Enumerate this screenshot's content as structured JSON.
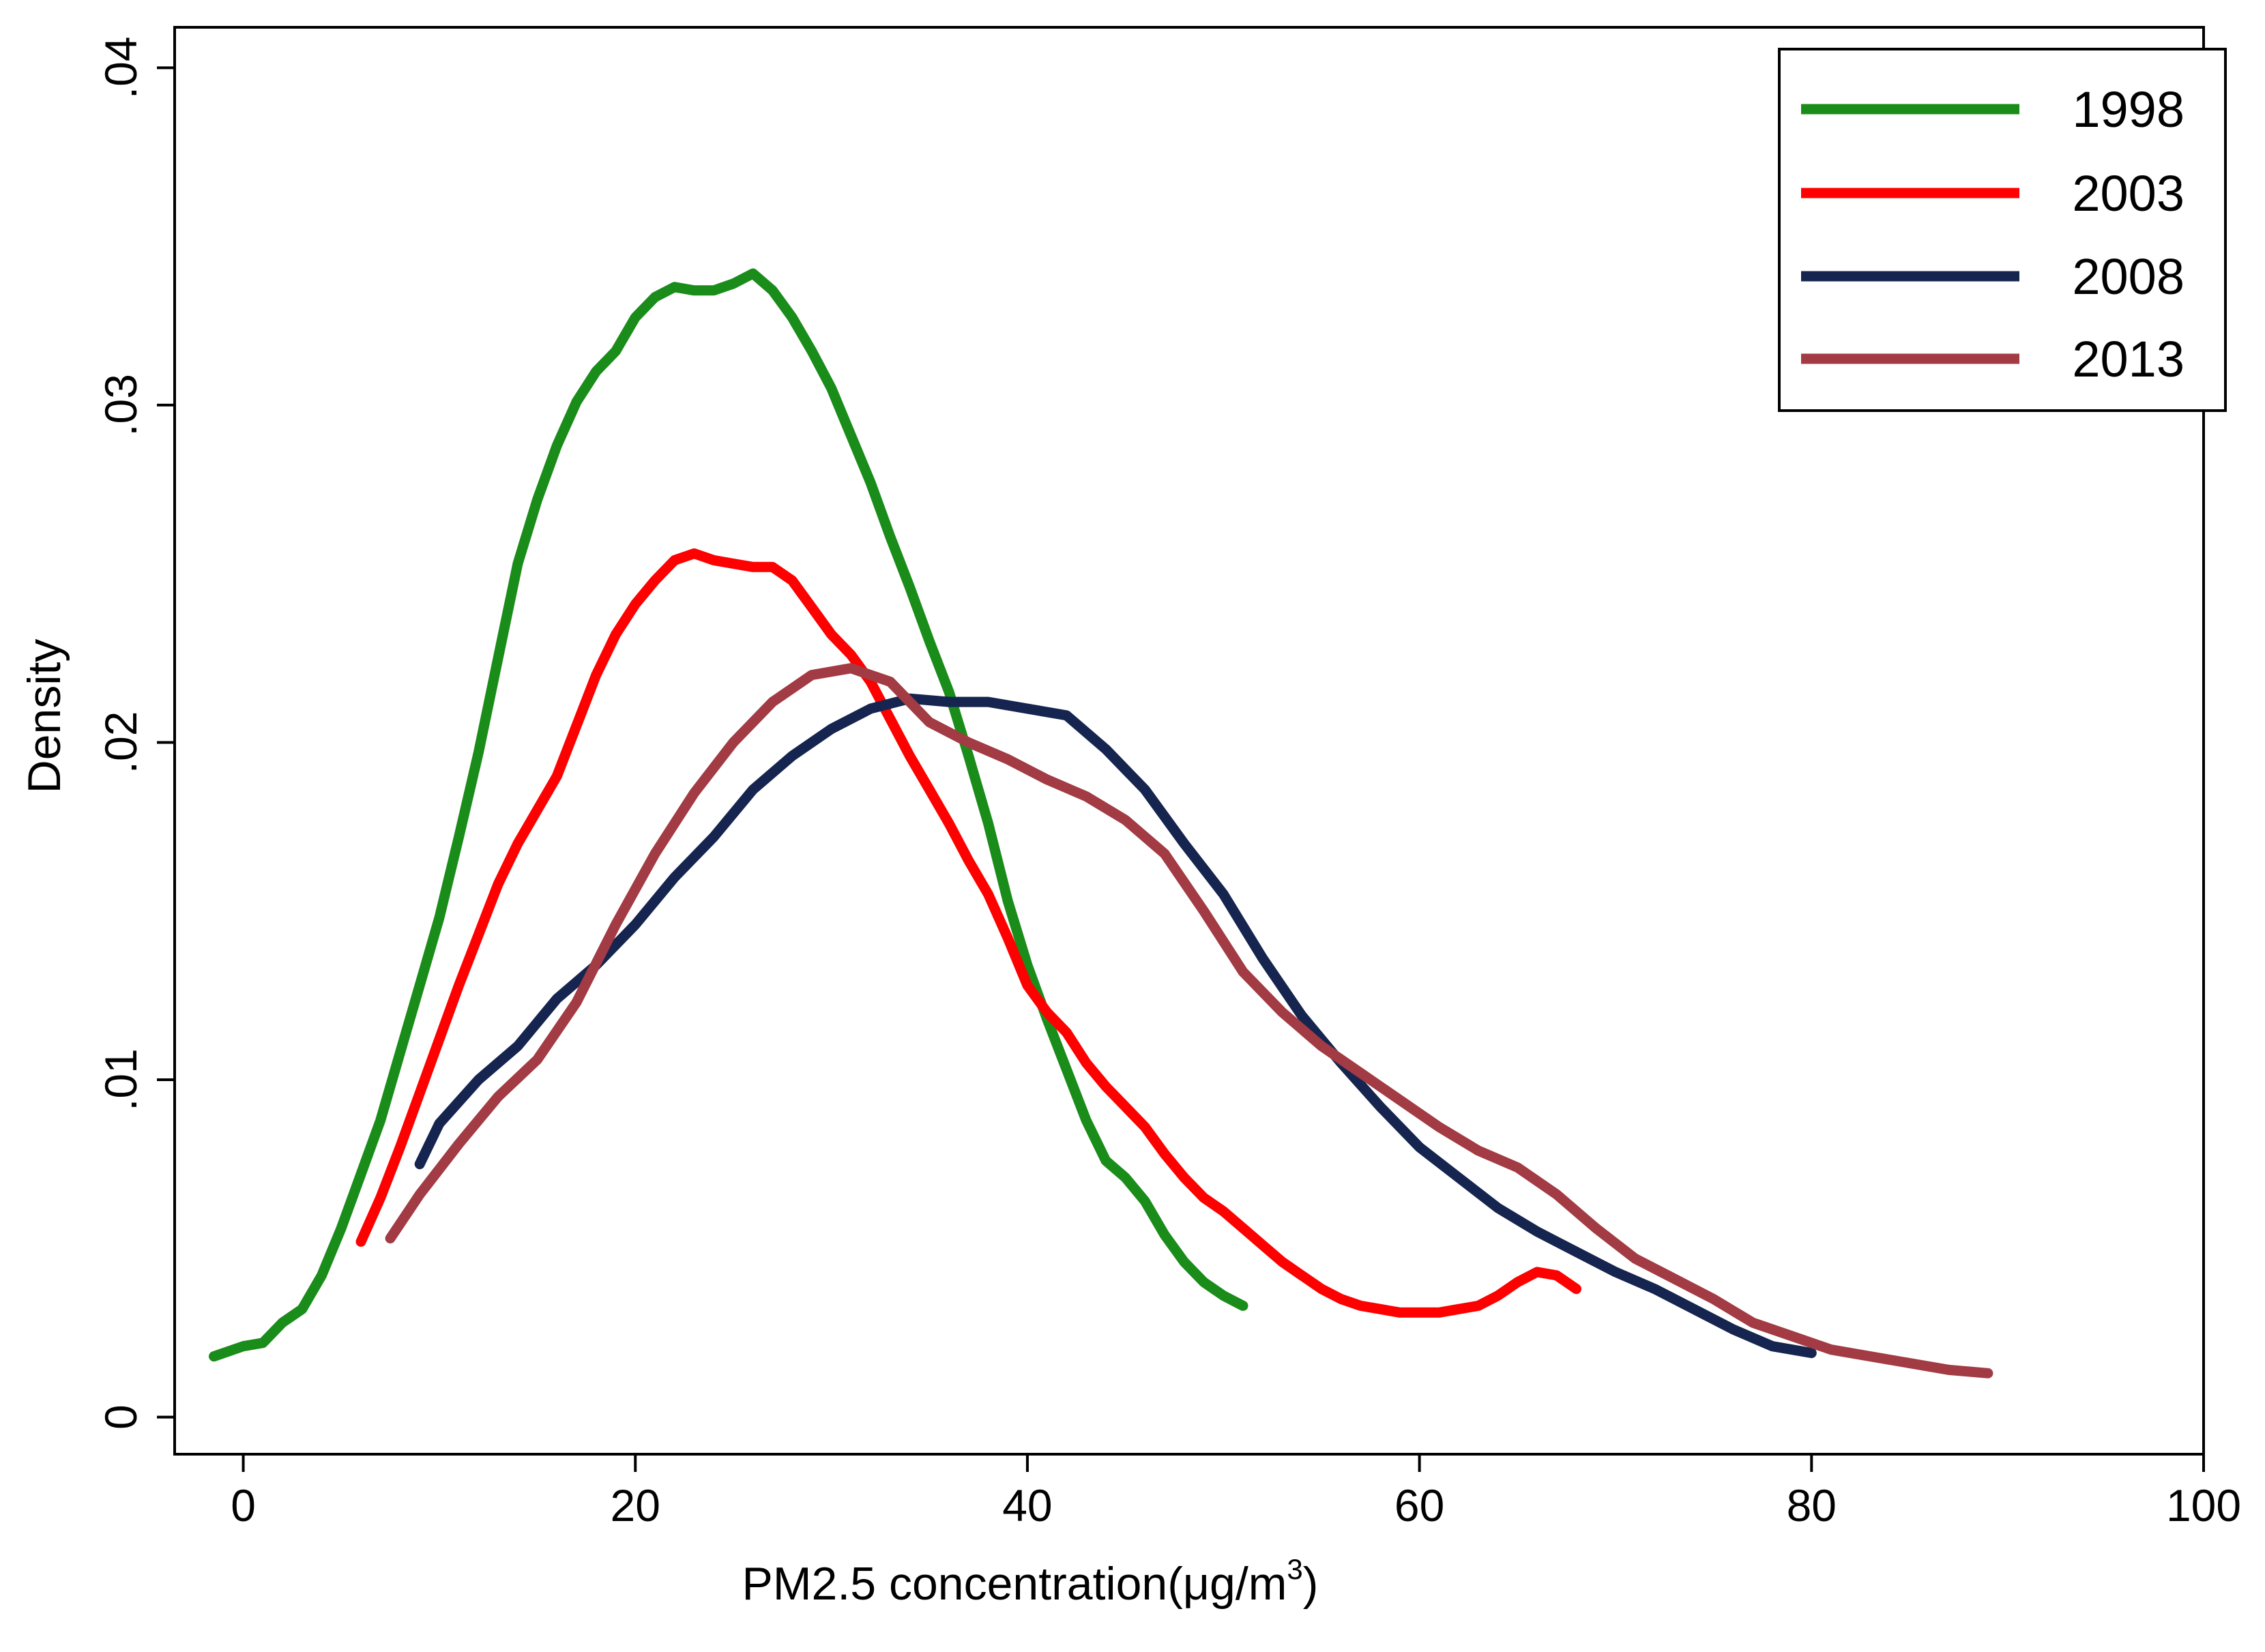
{
  "chart_data": {
    "type": "line",
    "title": "",
    "xlabel": "PM2.5 concentration(μg/m",
    "xlabel_superscript": "3",
    "xlabel_suffix": ")",
    "ylabel": "Density",
    "xlim": [
      -3.5,
      100
    ],
    "ylim": [
      -0.0011,
      0.0412
    ],
    "xticks": [
      0,
      20,
      40,
      60,
      80,
      100
    ],
    "xtick_labels": [
      "0",
      "20",
      "40",
      "60",
      "80",
      "100"
    ],
    "yticks": [
      0,
      0.01,
      0.02,
      0.03,
      0.04
    ],
    "ytick_labels": [
      "0",
      ".01",
      ".02",
      ".03",
      ".04"
    ],
    "grid": false,
    "legend_position": "top-right",
    "series": [
      {
        "name": "1998",
        "color": "#1a8c1a",
        "points": [
          [
            -1.5,
            0.0018
          ],
          [
            0,
            0.0021
          ],
          [
            1,
            0.0022
          ],
          [
            2,
            0.0028
          ],
          [
            3,
            0.0032
          ],
          [
            4,
            0.0042
          ],
          [
            5,
            0.0056
          ],
          [
            6,
            0.0072
          ],
          [
            7,
            0.0088
          ],
          [
            8,
            0.0108
          ],
          [
            9,
            0.0128
          ],
          [
            10,
            0.0148
          ],
          [
            11,
            0.0172
          ],
          [
            12,
            0.0197
          ],
          [
            13,
            0.0225
          ],
          [
            14,
            0.0253
          ],
          [
            15,
            0.0272
          ],
          [
            16,
            0.0288
          ],
          [
            17,
            0.0301
          ],
          [
            18,
            0.031
          ],
          [
            19,
            0.0316
          ],
          [
            20,
            0.0326
          ],
          [
            21,
            0.0332
          ],
          [
            22,
            0.0335
          ],
          [
            23,
            0.0334
          ],
          [
            24,
            0.0334
          ],
          [
            25,
            0.0336
          ],
          [
            26,
            0.0339
          ],
          [
            27,
            0.0334
          ],
          [
            28,
            0.0326
          ],
          [
            29,
            0.0316
          ],
          [
            30,
            0.0305
          ],
          [
            31,
            0.0291
          ],
          [
            32,
            0.0277
          ],
          [
            33,
            0.0261
          ],
          [
            34,
            0.0246
          ],
          [
            35,
            0.023
          ],
          [
            36,
            0.0215
          ],
          [
            37,
            0.0196
          ],
          [
            38,
            0.0176
          ],
          [
            39,
            0.0153
          ],
          [
            40,
            0.0134
          ],
          [
            41,
            0.0118
          ],
          [
            42,
            0.0103
          ],
          [
            43,
            0.0088
          ],
          [
            44,
            0.0076
          ],
          [
            45,
            0.0071
          ],
          [
            46,
            0.0064
          ],
          [
            47,
            0.0054
          ],
          [
            48,
            0.0046
          ],
          [
            49,
            0.004
          ],
          [
            50,
            0.0036
          ],
          [
            51,
            0.0033
          ]
        ]
      },
      {
        "name": "2003",
        "color": "#ff0000",
        "points": [
          [
            6,
            0.0052
          ],
          [
            7,
            0.0065
          ],
          [
            8,
            0.008
          ],
          [
            9,
            0.0096
          ],
          [
            10,
            0.0112
          ],
          [
            11,
            0.0128
          ],
          [
            12,
            0.0143
          ],
          [
            13,
            0.0158
          ],
          [
            14,
            0.017
          ],
          [
            15,
            0.018
          ],
          [
            16,
            0.019
          ],
          [
            17,
            0.0205
          ],
          [
            18,
            0.022
          ],
          [
            19,
            0.0232
          ],
          [
            20,
            0.0241
          ],
          [
            21,
            0.0248
          ],
          [
            22,
            0.0254
          ],
          [
            23,
            0.0256
          ],
          [
            24,
            0.0254
          ],
          [
            25,
            0.0253
          ],
          [
            26,
            0.0252
          ],
          [
            27,
            0.0252
          ],
          [
            28,
            0.0248
          ],
          [
            29,
            0.024
          ],
          [
            30,
            0.0232
          ],
          [
            31,
            0.0226
          ],
          [
            32,
            0.0218
          ],
          [
            33,
            0.0207
          ],
          [
            34,
            0.0196
          ],
          [
            35,
            0.0186
          ],
          [
            36,
            0.0176
          ],
          [
            37,
            0.0165
          ],
          [
            38,
            0.0155
          ],
          [
            39,
            0.0142
          ],
          [
            40,
            0.0128
          ],
          [
            41,
            0.012
          ],
          [
            42,
            0.0114
          ],
          [
            43,
            0.0105
          ],
          [
            44,
            0.0098
          ],
          [
            45,
            0.0092
          ],
          [
            46,
            0.0086
          ],
          [
            47,
            0.0078
          ],
          [
            48,
            0.0071
          ],
          [
            49,
            0.0065
          ],
          [
            50,
            0.0061
          ],
          [
            51,
            0.0056
          ],
          [
            52,
            0.0051
          ],
          [
            53,
            0.0046
          ],
          [
            54,
            0.0042
          ],
          [
            55,
            0.0038
          ],
          [
            56,
            0.0035
          ],
          [
            57,
            0.0033
          ],
          [
            58,
            0.0032
          ],
          [
            59,
            0.0031
          ],
          [
            60,
            0.0031
          ],
          [
            61,
            0.0031
          ],
          [
            62,
            0.0032
          ],
          [
            63,
            0.0033
          ],
          [
            64,
            0.0036
          ],
          [
            65,
            0.004
          ],
          [
            66,
            0.0043
          ],
          [
            67,
            0.0042
          ],
          [
            68,
            0.0038
          ]
        ]
      },
      {
        "name": "2008",
        "color": "#15254f",
        "points": [
          [
            9,
            0.0075
          ],
          [
            10,
            0.0087
          ],
          [
            12,
            0.01
          ],
          [
            14,
            0.011
          ],
          [
            16,
            0.0124
          ],
          [
            18,
            0.0134
          ],
          [
            20,
            0.0146
          ],
          [
            22,
            0.016
          ],
          [
            24,
            0.0172
          ],
          [
            26,
            0.0186
          ],
          [
            28,
            0.0196
          ],
          [
            30,
            0.0204
          ],
          [
            32,
            0.021
          ],
          [
            34,
            0.0213
          ],
          [
            36,
            0.0212
          ],
          [
            38,
            0.0212
          ],
          [
            40,
            0.021
          ],
          [
            42,
            0.0208
          ],
          [
            44,
            0.0198
          ],
          [
            46,
            0.0186
          ],
          [
            48,
            0.017
          ],
          [
            50,
            0.0155
          ],
          [
            52,
            0.0136
          ],
          [
            54,
            0.0119
          ],
          [
            56,
            0.0105
          ],
          [
            58,
            0.0092
          ],
          [
            60,
            0.008
          ],
          [
            62,
            0.0071
          ],
          [
            64,
            0.0062
          ],
          [
            66,
            0.0055
          ],
          [
            68,
            0.0049
          ],
          [
            70,
            0.0043
          ],
          [
            72,
            0.0038
          ],
          [
            74,
            0.0032
          ],
          [
            76,
            0.0026
          ],
          [
            78,
            0.0021
          ],
          [
            80,
            0.0019
          ]
        ]
      },
      {
        "name": "2013",
        "color": "#a23b43",
        "points": [
          [
            7.5,
            0.0053
          ],
          [
            9,
            0.0066
          ],
          [
            11,
            0.0081
          ],
          [
            13,
            0.0095
          ],
          [
            15,
            0.0106
          ],
          [
            17,
            0.0123
          ],
          [
            19,
            0.0146
          ],
          [
            21,
            0.0167
          ],
          [
            23,
            0.0185
          ],
          [
            25,
            0.02
          ],
          [
            27,
            0.0212
          ],
          [
            29,
            0.022
          ],
          [
            31,
            0.0222
          ],
          [
            33,
            0.0218
          ],
          [
            35,
            0.0206
          ],
          [
            37,
            0.02
          ],
          [
            39,
            0.0195
          ],
          [
            41,
            0.0189
          ],
          [
            43,
            0.0184
          ],
          [
            45,
            0.0177
          ],
          [
            47,
            0.0167
          ],
          [
            49,
            0.015
          ],
          [
            51,
            0.0132
          ],
          [
            53,
            0.012
          ],
          [
            55,
            0.011
          ],
          [
            57,
            0.0102
          ],
          [
            59,
            0.0094
          ],
          [
            61,
            0.0086
          ],
          [
            63,
            0.0079
          ],
          [
            65,
            0.0074
          ],
          [
            67,
            0.0066
          ],
          [
            69,
            0.0056
          ],
          [
            71,
            0.0047
          ],
          [
            73,
            0.0041
          ],
          [
            75,
            0.0035
          ],
          [
            77,
            0.0028
          ],
          [
            79,
            0.0024
          ],
          [
            81,
            0.002
          ],
          [
            83,
            0.0018
          ],
          [
            85,
            0.0016
          ],
          [
            87,
            0.0014
          ],
          [
            89,
            0.0013
          ]
        ]
      }
    ]
  }
}
